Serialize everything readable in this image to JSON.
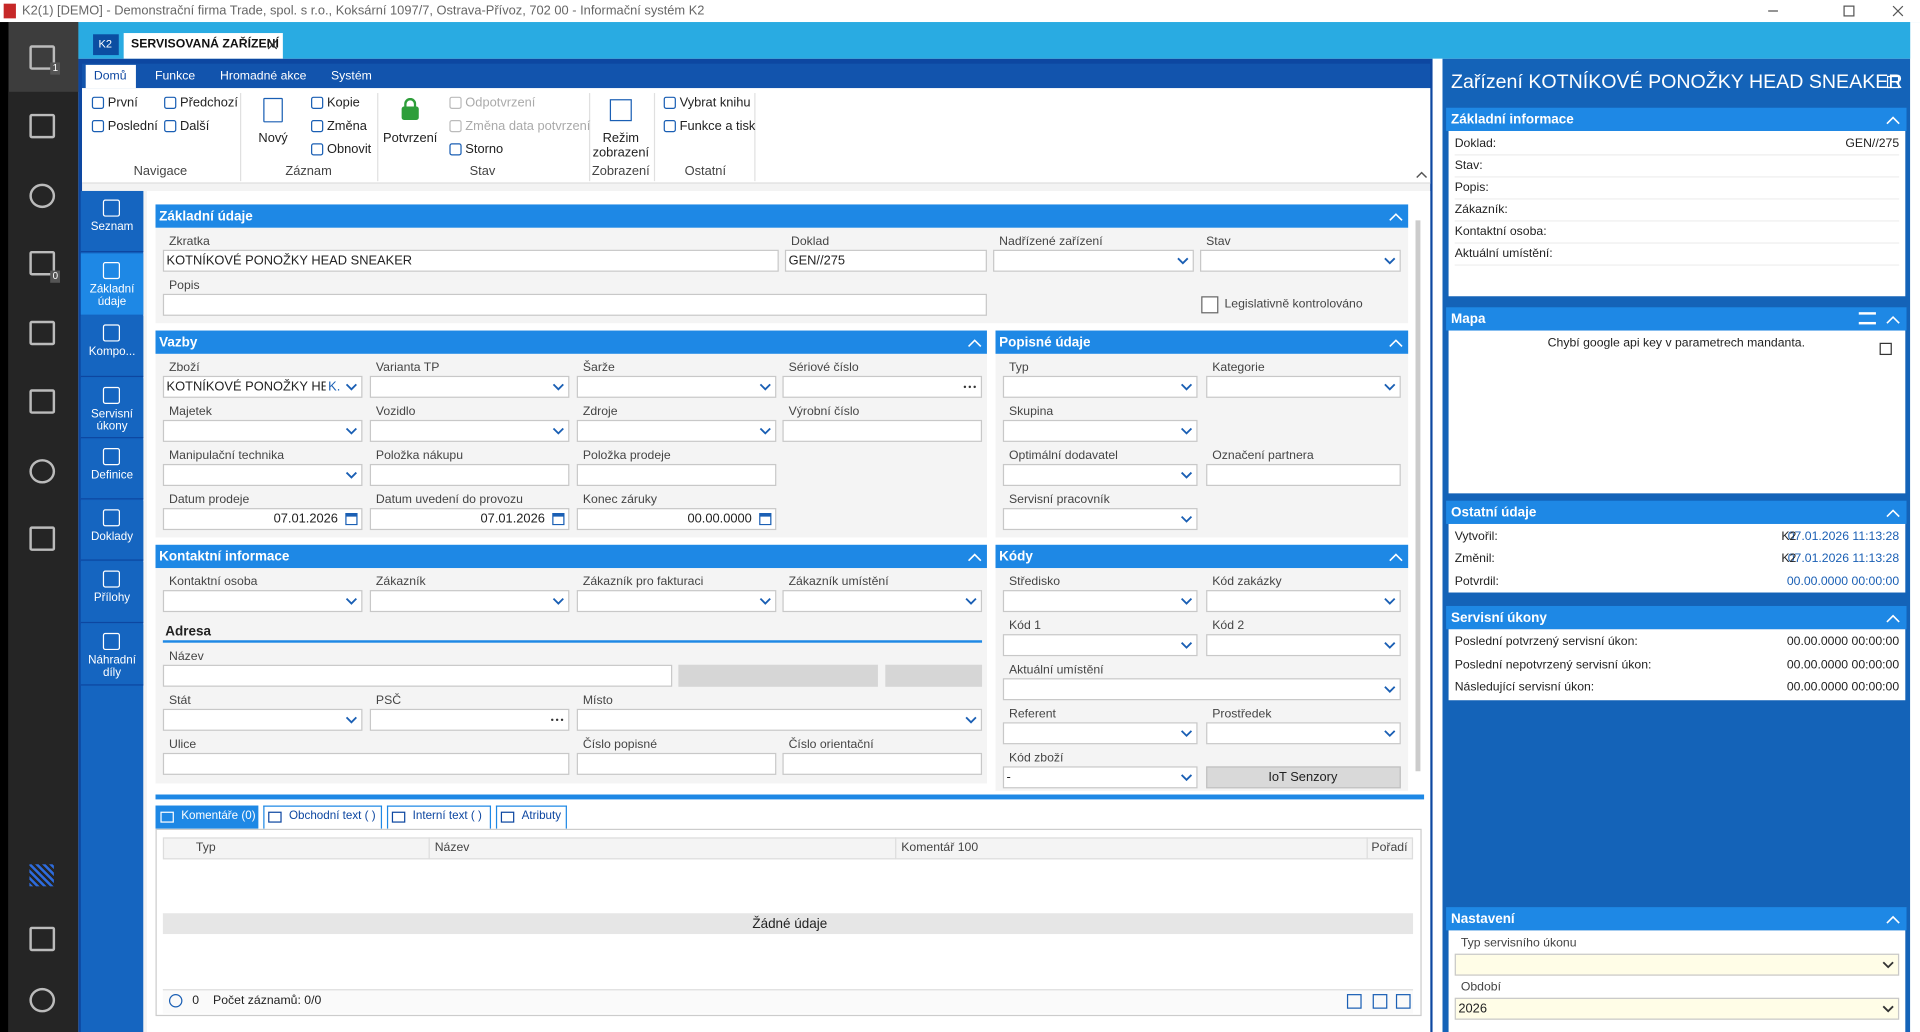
{
  "window": {
    "title": "K2(1) [DEMO] - Demonstrační firma Trade, spol. s r.o., Koksární 1097/7, Ostrava-Přívoz, 702 00 - Informační systém K2"
  },
  "sidebar": {
    "badges": [
      "1",
      "0"
    ]
  },
  "tabs": {
    "app": "K2",
    "document": "SERVISOVANÁ ZAŘÍZENÍ"
  },
  "ribbon": {
    "tabs": [
      "Domů",
      "Funkce",
      "Hromadné akce",
      "Systém"
    ],
    "groups": [
      {
        "label": "Navigace",
        "buttons": [
          "První",
          "Poslední",
          "Předchozí",
          "Další"
        ]
      },
      {
        "label": "Záznam",
        "buttons": [
          "Nový",
          "Kopie",
          "Změna",
          "Obnovit"
        ]
      },
      {
        "label": "Stav",
        "buttons": [
          "Potvrzení",
          "Odpotvrzení",
          "Změna data potvrzení",
          "Storno"
        ]
      },
      {
        "label": "Zobrazení",
        "buttons": [
          "Režim zobrazení"
        ]
      },
      {
        "label": "Ostatní",
        "buttons": [
          "Vybrat knihu",
          "Funkce a tisk"
        ]
      }
    ]
  },
  "nav": [
    "Seznam",
    "Základní údaje",
    "Kompo...",
    "Servisní úkony",
    "Definice",
    "Doklady",
    "Přílohy",
    "Náhradní díly"
  ],
  "form": {
    "sections": [
      {
        "title": "Základní údaje",
        "fields": [
          {
            "label": "Zkratka",
            "value": "KOTNÍKOVÉ PONOŽKY HEAD SNEAKER"
          },
          {
            "label": "Doklad",
            "value": "GEN//275"
          },
          {
            "label": "Nadřízené zařízení"
          },
          {
            "label": "Stav"
          },
          {
            "label": "Popis"
          }
        ],
        "checkbox": "Legislativně kontrolováno"
      },
      {
        "title": "Vazby",
        "fields": [
          {
            "label": "Zboží",
            "value": "KOTNÍKOVÉ PONOŽKY HEAD",
            "tag": "K."
          },
          {
            "label": "Varianta TP"
          },
          {
            "label": "Šarže"
          },
          {
            "label": "Sériové číslo"
          },
          {
            "label": "Majetek"
          },
          {
            "label": "Vozidlo"
          },
          {
            "label": "Zdroje"
          },
          {
            "label": "Výrobní číslo"
          },
          {
            "label": "Manipulační technika"
          },
          {
            "label": "Položka nákupu"
          },
          {
            "label": "Položka prodeje"
          },
          {
            "label": "Datum prodeje",
            "value": "07.01.2026"
          },
          {
            "label": "Datum uvedení do provozu",
            "value": "07.01.2026"
          },
          {
            "label": "Konec záruky",
            "value": "00.00.0000"
          }
        ]
      },
      {
        "title": "Popisné údaje",
        "fields": [
          {
            "label": "Typ"
          },
          {
            "label": "Kategorie"
          },
          {
            "label": "Skupina"
          },
          {
            "label": "Optimální dodavatel"
          },
          {
            "label": "Označení partnera"
          },
          {
            "label": "Servisní pracovník"
          }
        ]
      },
      {
        "title": "Kontaktní informace",
        "fields": [
          {
            "label": "Kontaktní osoba"
          },
          {
            "label": "Zákazník"
          },
          {
            "label": "Zákazník pro fakturaci"
          },
          {
            "label": "Zákazník umístění"
          },
          {
            "label": "Název"
          },
          {
            "label": "Stát"
          },
          {
            "label": "PSČ"
          },
          {
            "label": "Místo"
          },
          {
            "label": "Ulice"
          },
          {
            "label": "Číslo popisné"
          },
          {
            "label": "Číslo orientační"
          }
        ],
        "subheading": "Adresa"
      },
      {
        "title": "Kódy",
        "fields": [
          {
            "label": "Středisko"
          },
          {
            "label": "Kód zakázky"
          },
          {
            "label": "Kód 1"
          },
          {
            "label": "Kód 2"
          },
          {
            "label": "Aktuální umístění"
          },
          {
            "label": "Referent"
          },
          {
            "label": "Prostředek"
          },
          {
            "label": "Kód zboží",
            "value": "-"
          }
        ],
        "button": "IoT Senzory"
      }
    ]
  },
  "details": {
    "tabs": [
      "Komentáře (0)",
      "Obchodní text ( )",
      "Interní text ( )",
      "Atributy"
    ],
    "columns": [
      "Typ",
      "Název",
      "Komentář 100",
      "Pořadí"
    ],
    "empty": "Žádné údaje",
    "count": "0",
    "records": "Počet záznamů: 0/0"
  },
  "panel": {
    "title": "Zařízení KOTNÍKOVÉ PONOŽKY HEAD SNEAKER",
    "sections": [
      {
        "title": "Základní informace",
        "rows": [
          {
            "label": "Doklad:",
            "value": "GEN//275"
          },
          {
            "label": "Stav:"
          },
          {
            "label": "Popis:"
          },
          {
            "label": "Zákazník:"
          },
          {
            "label": "Kontaktní osoba:"
          },
          {
            "label": "Aktuální umístění:"
          }
        ]
      },
      {
        "title": "Mapa",
        "message": "Chybí google api key v parametrech mandanta."
      },
      {
        "title": "Ostatní údaje",
        "rows": [
          {
            "label": "Vytvořil:",
            "user": "K2",
            "value": "07.01.2026 11:13:28"
          },
          {
            "label": "Změnil:",
            "user": "K2",
            "value": "07.01.2026 11:13:28"
          },
          {
            "label": "Potvrdil:",
            "value": "00.00.0000 00:00:00"
          }
        ]
      },
      {
        "title": "Servisní úkony",
        "rows": [
          {
            "label": "Poslední potvrzený servisní úkon:",
            "value": "00.00.0000 00:00:00"
          },
          {
            "label": "Poslední nepotvrzený servisní úkon:",
            "value": "00.00.0000 00:00:00"
          },
          {
            "label": "Následující servisní úkon:",
            "value": "00.00.0000 00:00:00"
          }
        ]
      },
      {
        "title": "Nastavení",
        "fields": [
          {
            "label": "Typ servisního úkonu"
          },
          {
            "label": "Období",
            "value": "2026"
          }
        ]
      }
    ]
  }
}
